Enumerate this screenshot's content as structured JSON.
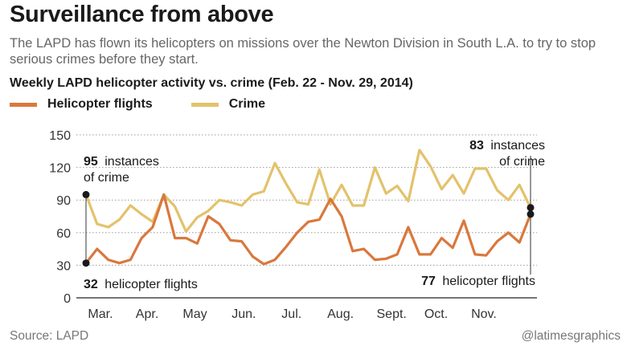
{
  "header": {
    "title": "Surveillance from above",
    "subtitle": "The LAPD has flown its helicopters on missions over the Newton Division in South L.A. to try to stop serious crimes before they start."
  },
  "chart_data": {
    "type": "line",
    "title": "Weekly LAPD helicopter activity vs. crime (Feb. 22 - Nov. 29, 2014)",
    "xlabel": "",
    "ylabel": "",
    "ylim": [
      0,
      150
    ],
    "yticks": [
      0,
      30,
      60,
      90,
      120,
      150
    ],
    "grid": true,
    "legend_position": "top-left",
    "weeks": 41,
    "x_tick_labels": [
      {
        "label": "Mar.",
        "week": 1.3
      },
      {
        "label": "Apr.",
        "week": 5.5
      },
      {
        "label": "May",
        "week": 9.8
      },
      {
        "label": "Jun.",
        "week": 14.2
      },
      {
        "label": "Jul.",
        "week": 18.5
      },
      {
        "label": "Aug.",
        "week": 22.9
      },
      {
        "label": "Sept.",
        "week": 27.5
      },
      {
        "label": "Oct.",
        "week": 31.5
      },
      {
        "label": "Nov.",
        "week": 35.8
      }
    ],
    "series": [
      {
        "name": "Helicopter flights",
        "color": "#d9783d",
        "values": [
          32,
          45,
          35,
          32,
          35,
          55,
          65,
          95,
          55,
          55,
          50,
          75,
          68,
          53,
          52,
          38,
          31,
          35,
          47,
          60,
          70,
          72,
          91,
          75,
          43,
          45,
          35,
          36,
          40,
          65,
          40,
          40,
          55,
          46,
          71,
          40,
          39,
          52,
          60,
          51,
          77
        ]
      },
      {
        "name": "Crime",
        "color": "#e3c26b",
        "values": [
          95,
          68,
          65,
          72,
          85,
          77,
          70,
          95,
          84,
          61,
          74,
          80,
          90,
          88,
          85,
          95,
          98,
          124,
          105,
          88,
          86,
          118,
          86,
          104,
          85,
          85,
          120,
          96,
          103,
          89,
          136,
          121,
          100,
          113,
          96,
          119,
          119,
          99,
          90,
          104,
          83
        ]
      }
    ],
    "annotations": {
      "crime_start": {
        "value": "95",
        "text_line1": "instances",
        "text_line2": "of crime"
      },
      "crime_end": {
        "value": "83",
        "text_line1": "instances",
        "text_line2": "of crime"
      },
      "flights_start": {
        "value": "32",
        "text": "helicopter flights"
      },
      "flights_end": {
        "value": "77",
        "text": "helicopter flights"
      }
    }
  },
  "footer": {
    "source": "Source: LAPD",
    "credit": "@latimesgraphics"
  }
}
